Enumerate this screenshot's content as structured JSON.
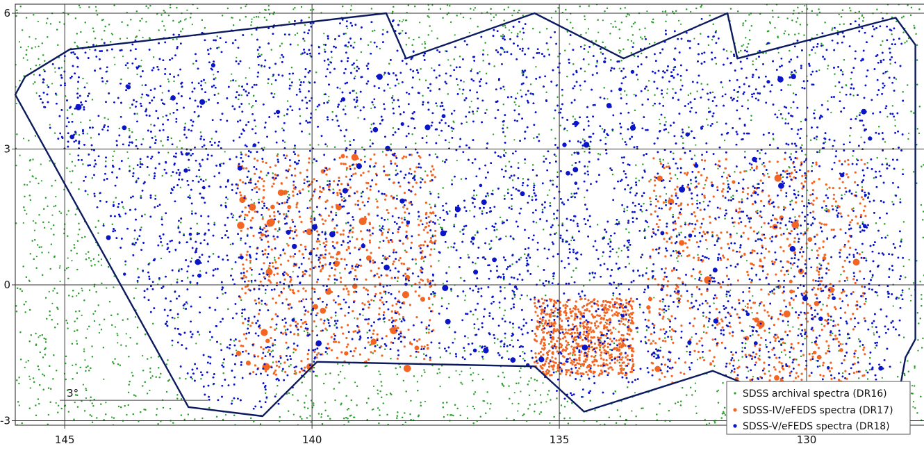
{
  "chart_data": {
    "type": "scatter",
    "title": "",
    "xlabel": "",
    "ylabel": "",
    "xlim": [
      146,
      127.5
    ],
    "ylim": [
      -3.1,
      6.2
    ],
    "x_ticks": [
      145,
      140,
      135,
      130
    ],
    "x_tick_labels": [
      "145",
      "140",
      "135",
      "130"
    ],
    "y_ticks": [
      6,
      3,
      0,
      -3
    ],
    "y_tick_labels": [
      "6",
      "3",
      "0",
      "-3"
    ],
    "grid": true,
    "legend_position": "bottom-right",
    "scale_bar_label": "3°",
    "scale_bar_length_deg": 3,
    "series": [
      {
        "name": "SDSS archival spectra (DR16)",
        "color": "#2ca02c",
        "marker": "small-dot"
      },
      {
        "name": "SDSS-IV/eFEDS spectra (DR17)",
        "color": "#f26522",
        "marker": "dot"
      },
      {
        "name": "SDSS-V/eFEDS spectra (DR18)",
        "color": "#0a14c8",
        "marker": "dot"
      }
    ],
    "footprint_outline": {
      "color": "#0b1a5e",
      "vertices_ra_dec": [
        [
          145.8,
          4.6
        ],
        [
          144.9,
          5.2
        ],
        [
          138.5,
          6.0
        ],
        [
          138.1,
          5.0
        ],
        [
          135.5,
          6.0
        ],
        [
          133.7,
          5.0
        ],
        [
          131.6,
          6.0
        ],
        [
          131.4,
          5.0
        ],
        [
          128.2,
          5.9
        ],
        [
          127.8,
          5.3
        ],
        [
          127.8,
          -1.2
        ],
        [
          127.9,
          -1.4
        ],
        [
          128.0,
          -1.6
        ],
        [
          128.2,
          -2.8
        ],
        [
          128.6,
          -2.95
        ],
        [
          129.5,
          -2.95
        ],
        [
          131.9,
          -1.9
        ],
        [
          134.5,
          -2.8
        ],
        [
          135.5,
          -1.8
        ],
        [
          139.9,
          -1.7
        ],
        [
          141.0,
          -2.9
        ],
        [
          142.5,
          -2.7
        ],
        [
          146.0,
          4.2
        ]
      ]
    },
    "density_regions": {
      "archival_dr16": "entire field",
      "efeds_dr17": [
        {
          "ra_min": 137.5,
          "ra_max": 141.5,
          "dec_min": -2.0,
          "dec_max": 2.9
        },
        {
          "ra_min": 128.8,
          "ra_max": 133.2,
          "dec_min": -2.2,
          "dec_max": 2.8
        },
        {
          "ra_min": 133.5,
          "ra_max": 135.5,
          "dec_min": -2.0,
          "dec_max": -0.3
        }
      ],
      "efeds_dr18": "inside footprint outline"
    }
  }
}
